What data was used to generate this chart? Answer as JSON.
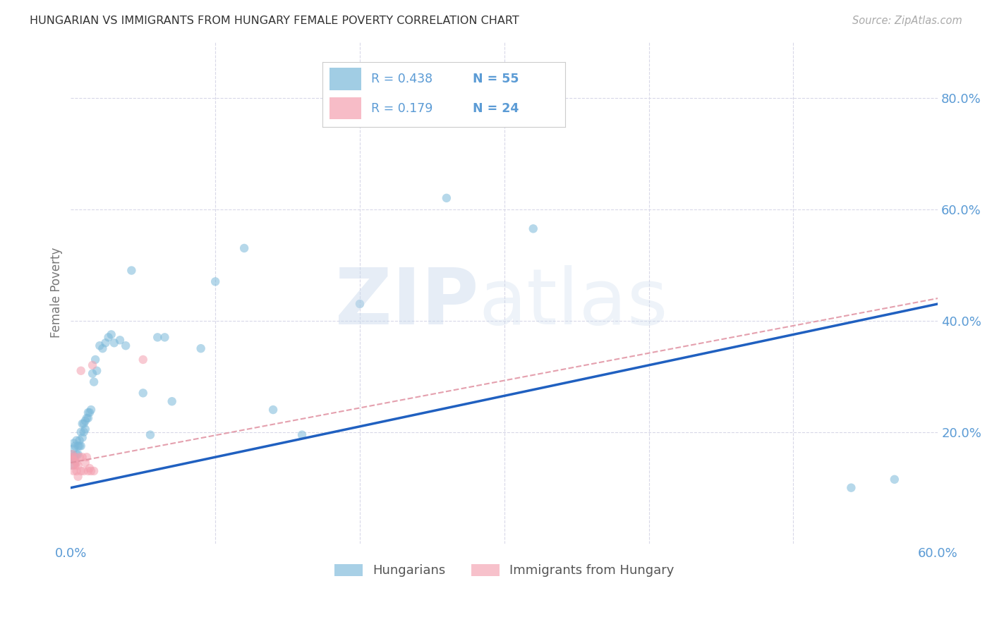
{
  "title": "HUNGARIAN VS IMMIGRANTS FROM HUNGARY FEMALE POVERTY CORRELATION CHART",
  "source": "Source: ZipAtlas.com",
  "ylabel": "Female Poverty",
  "xlim": [
    0.0,
    0.6
  ],
  "ylim": [
    0.0,
    0.9
  ],
  "ytick_positions": [
    0.0,
    0.2,
    0.4,
    0.6,
    0.8
  ],
  "ytick_labels": [
    "",
    "20.0%",
    "40.0%",
    "60.0%",
    "80.0%"
  ],
  "xtick_positions": [
    0.0,
    0.1,
    0.2,
    0.3,
    0.4,
    0.5,
    0.6
  ],
  "xtick_labels": [
    "0.0%",
    "",
    "",
    "",
    "",
    "",
    "60.0%"
  ],
  "legend_r1": "0.438",
  "legend_n1": "55",
  "legend_r2": "0.179",
  "legend_n2": "24",
  "series1_color": "#7ab8d9",
  "series2_color": "#f4a0b0",
  "series1_label": "Hungarians",
  "series2_label": "Immigrants from Hungary",
  "line1_color": "#2060c0",
  "line2_color": "#e090a0",
  "background_color": "#ffffff",
  "grid_color": "#d8d8e8",
  "tick_color": "#5b9bd5",
  "series1_x": [
    0.001,
    0.001,
    0.001,
    0.002,
    0.002,
    0.002,
    0.003,
    0.003,
    0.004,
    0.004,
    0.005,
    0.005,
    0.006,
    0.006,
    0.007,
    0.007,
    0.008,
    0.008,
    0.009,
    0.009,
    0.01,
    0.01,
    0.011,
    0.012,
    0.012,
    0.013,
    0.014,
    0.015,
    0.016,
    0.017,
    0.018,
    0.02,
    0.022,
    0.024,
    0.026,
    0.028,
    0.03,
    0.034,
    0.038,
    0.042,
    0.05,
    0.055,
    0.06,
    0.065,
    0.07,
    0.09,
    0.1,
    0.12,
    0.14,
    0.16,
    0.2,
    0.26,
    0.32,
    0.54,
    0.57
  ],
  "series1_y": [
    0.145,
    0.155,
    0.16,
    0.15,
    0.17,
    0.18,
    0.155,
    0.175,
    0.16,
    0.185,
    0.16,
    0.175,
    0.175,
    0.185,
    0.175,
    0.2,
    0.19,
    0.215,
    0.2,
    0.215,
    0.205,
    0.22,
    0.225,
    0.225,
    0.235,
    0.235,
    0.24,
    0.305,
    0.29,
    0.33,
    0.31,
    0.355,
    0.35,
    0.36,
    0.37,
    0.375,
    0.36,
    0.365,
    0.355,
    0.49,
    0.27,
    0.195,
    0.37,
    0.37,
    0.255,
    0.35,
    0.47,
    0.53,
    0.24,
    0.195,
    0.43,
    0.62,
    0.565,
    0.1,
    0.115
  ],
  "series1_size": [
    200,
    80,
    80,
    80,
    80,
    80,
    80,
    80,
    80,
    80,
    80,
    80,
    80,
    80,
    80,
    80,
    80,
    80,
    80,
    80,
    80,
    80,
    80,
    80,
    80,
    80,
    80,
    80,
    80,
    80,
    80,
    80,
    80,
    80,
    80,
    80,
    80,
    80,
    80,
    80,
    80,
    80,
    80,
    80,
    80,
    80,
    80,
    80,
    80,
    80,
    80,
    80,
    80,
    80,
    80
  ],
  "series2_x": [
    0.001,
    0.001,
    0.001,
    0.002,
    0.002,
    0.003,
    0.003,
    0.004,
    0.004,
    0.005,
    0.005,
    0.006,
    0.007,
    0.007,
    0.008,
    0.009,
    0.01,
    0.011,
    0.012,
    0.013,
    0.014,
    0.015,
    0.016,
    0.05
  ],
  "series2_y": [
    0.145,
    0.155,
    0.16,
    0.13,
    0.15,
    0.14,
    0.155,
    0.13,
    0.145,
    0.12,
    0.14,
    0.155,
    0.13,
    0.31,
    0.155,
    0.13,
    0.145,
    0.155,
    0.13,
    0.135,
    0.13,
    0.32,
    0.13,
    0.33
  ],
  "series2_size": [
    200,
    80,
    80,
    80,
    80,
    80,
    80,
    80,
    80,
    80,
    80,
    80,
    80,
    80,
    80,
    80,
    80,
    80,
    80,
    80,
    80,
    80,
    80,
    80
  ],
  "line1_x_start": 0.0,
  "line1_y_start": 0.1,
  "line1_x_end": 0.6,
  "line1_y_end": 0.43,
  "line2_x_start": 0.0,
  "line2_y_start": 0.145,
  "line2_x_end": 0.6,
  "line2_y_end": 0.44
}
